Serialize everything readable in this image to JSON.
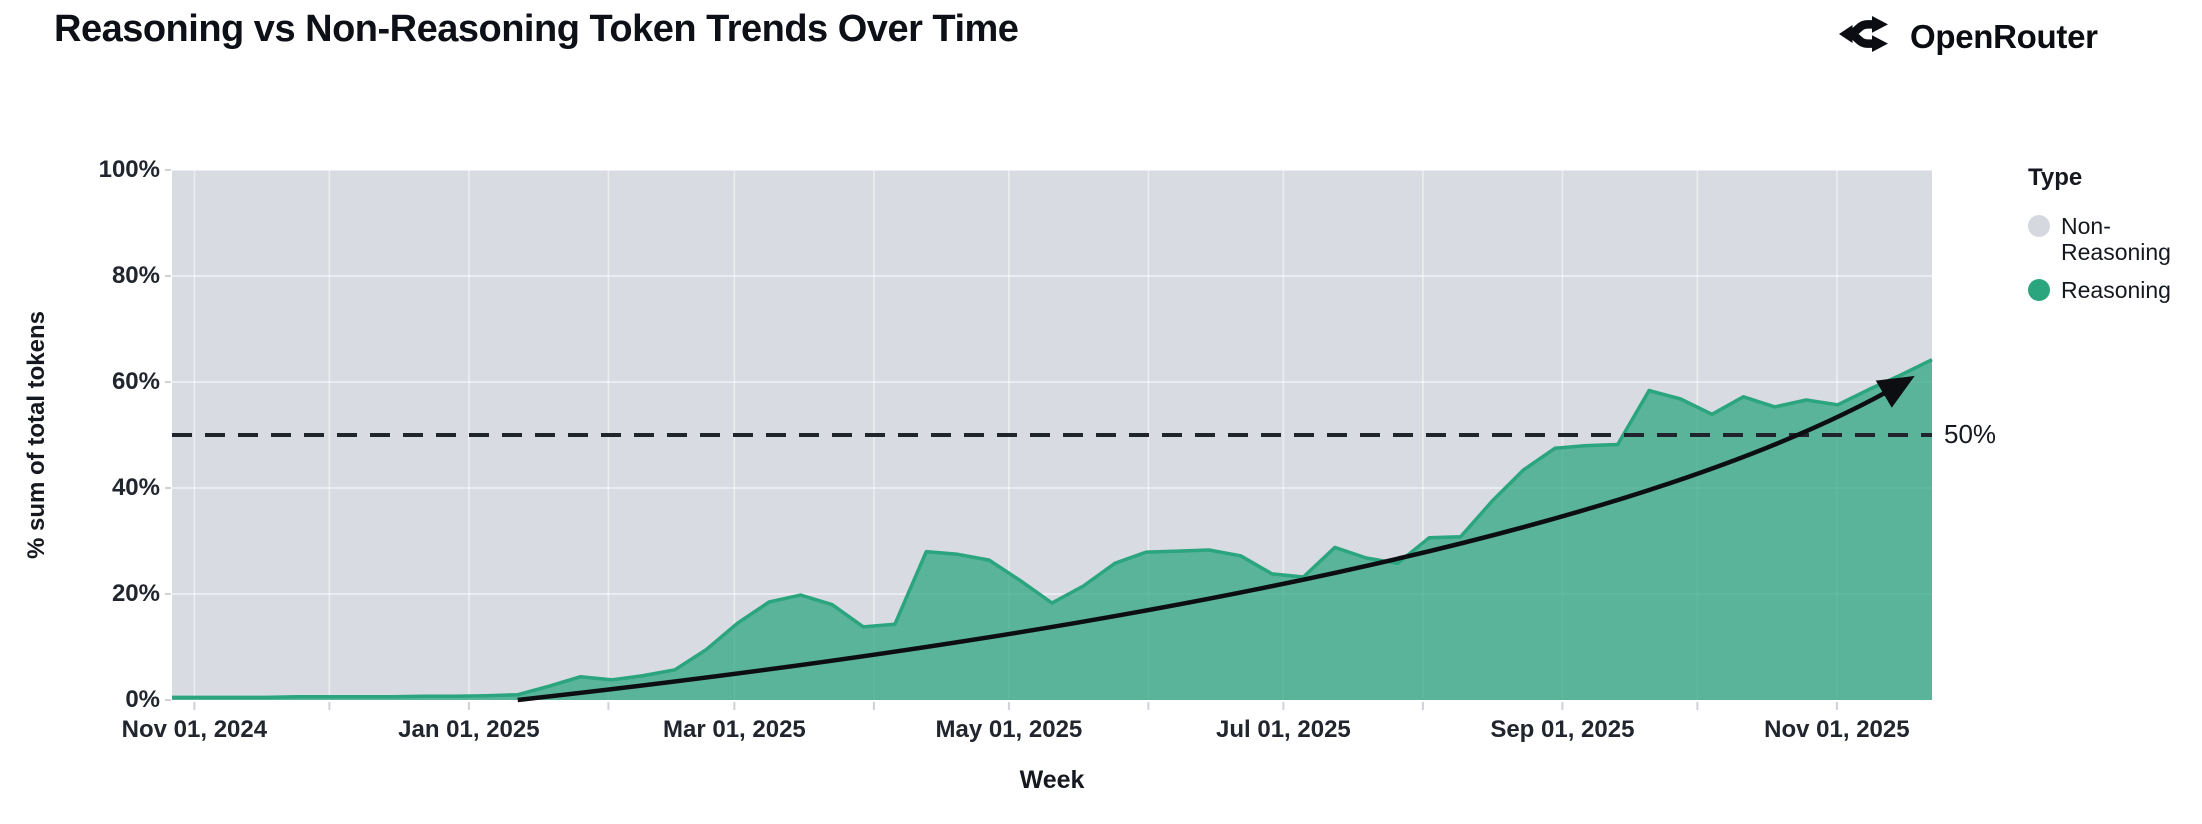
{
  "header": {
    "title": "Reasoning vs Non-Reasoning Token Trends Over Time",
    "brand": "OpenRouter"
  },
  "colors": {
    "ink": "#20242c",
    "plot_background_non_reasoning": "#d8dbe2",
    "reasoning_green": "#2aa57d",
    "reasoning_fill_opacity": 0.72,
    "legend_gray_dot": "#d5d8df",
    "gridline": "rgba(255,255,255,0.65)",
    "tick_mark": "#cfd2d9",
    "arrow_black": "#0c0e12"
  },
  "chart_data": {
    "type": "area",
    "stacked_percent": true,
    "title": "Reasoning vs Non-Reasoning Token Trends Over Time",
    "xlabel": "Week",
    "ylabel": "% sum of total tokens",
    "ylim": [
      0,
      100
    ],
    "grid": true,
    "y_ticks_percent": [
      0,
      20,
      40,
      60,
      80,
      100
    ],
    "y_tick_labels": [
      "0%",
      "20%",
      "40%",
      "60%",
      "80%",
      "100%"
    ],
    "x_ticks": [
      {
        "label": "Nov 01, 2024",
        "day": 0
      },
      {
        "label": "Jan 01, 2025",
        "day": 61
      },
      {
        "label": "Mar 01, 2025",
        "day": 120
      },
      {
        "label": "May 01, 2025",
        "day": 181
      },
      {
        "label": "Jul 01, 2025",
        "day": 242
      },
      {
        "label": "Sep 01, 2025",
        "day": 304
      },
      {
        "label": "Nov 01, 2025",
        "day": 365
      }
    ],
    "minor_tick_days": [
      0,
      30,
      61,
      92,
      120,
      151,
      181,
      212,
      242,
      273,
      304,
      334,
      365
    ],
    "legend": {
      "title": "Type",
      "position": "right",
      "items": [
        {
          "label": "Non-Reasoning",
          "color": "#d5d8df"
        },
        {
          "label": "Reasoning",
          "color": "#2aa57d"
        }
      ]
    },
    "reference_line": {
      "value": 50,
      "label": "50%",
      "style": "dashed"
    },
    "annotations": {
      "trend_arrow": {
        "start_week_index": 11,
        "start_value": 0,
        "end_day": 381,
        "end_value": 60.5
      }
    },
    "series": [
      {
        "name": "Reasoning",
        "color": "#2aa57d",
        "weeks": [
          "2024-10-27",
          "2024-11-03",
          "2024-11-10",
          "2024-11-17",
          "2024-11-24",
          "2024-12-01",
          "2024-12-08",
          "2024-12-15",
          "2024-12-22",
          "2024-12-29",
          "2025-01-05",
          "2025-01-12",
          "2025-01-19",
          "2025-01-26",
          "2025-02-02",
          "2025-02-09",
          "2025-02-16",
          "2025-02-23",
          "2025-03-02",
          "2025-03-09",
          "2025-03-16",
          "2025-03-23",
          "2025-03-30",
          "2025-04-06",
          "2025-04-13",
          "2025-04-20",
          "2025-04-27",
          "2025-05-04",
          "2025-05-11",
          "2025-05-18",
          "2025-05-25",
          "2025-06-01",
          "2025-06-08",
          "2025-06-15",
          "2025-06-22",
          "2025-06-29",
          "2025-07-06",
          "2025-07-13",
          "2025-07-20",
          "2025-07-27",
          "2025-08-03",
          "2025-08-10",
          "2025-08-17",
          "2025-08-24",
          "2025-08-31",
          "2025-09-07",
          "2025-09-14",
          "2025-09-21",
          "2025-09-28",
          "2025-10-05",
          "2025-10-12",
          "2025-10-19",
          "2025-10-26",
          "2025-11-02",
          "2025-11-09",
          "2025-11-16",
          "2025-11-23"
        ],
        "values": [
          0.5,
          0.5,
          0.5,
          0.5,
          0.6,
          0.6,
          0.6,
          0.6,
          0.7,
          0.7,
          0.8,
          1.0,
          2.6,
          4.4,
          3.8,
          4.6,
          5.7,
          9.5,
          14.5,
          18.5,
          19.8,
          18.0,
          13.8,
          14.3,
          28.0,
          27.5,
          26.4,
          22.5,
          18.3,
          21.5,
          25.8,
          27.9,
          28.1,
          28.3,
          27.2,
          23.8,
          23.2,
          28.8,
          26.8,
          25.8,
          30.6,
          30.8,
          37.5,
          43.4,
          47.5,
          48.0,
          48.2,
          58.4,
          56.8,
          53.9,
          57.2,
          55.3,
          56.6,
          55.7,
          58.6,
          61.3,
          64.2
        ]
      },
      {
        "name": "Non-Reasoning",
        "color": "#d8dbe2",
        "values": "complement: 100 minus Reasoning"
      }
    ]
  }
}
